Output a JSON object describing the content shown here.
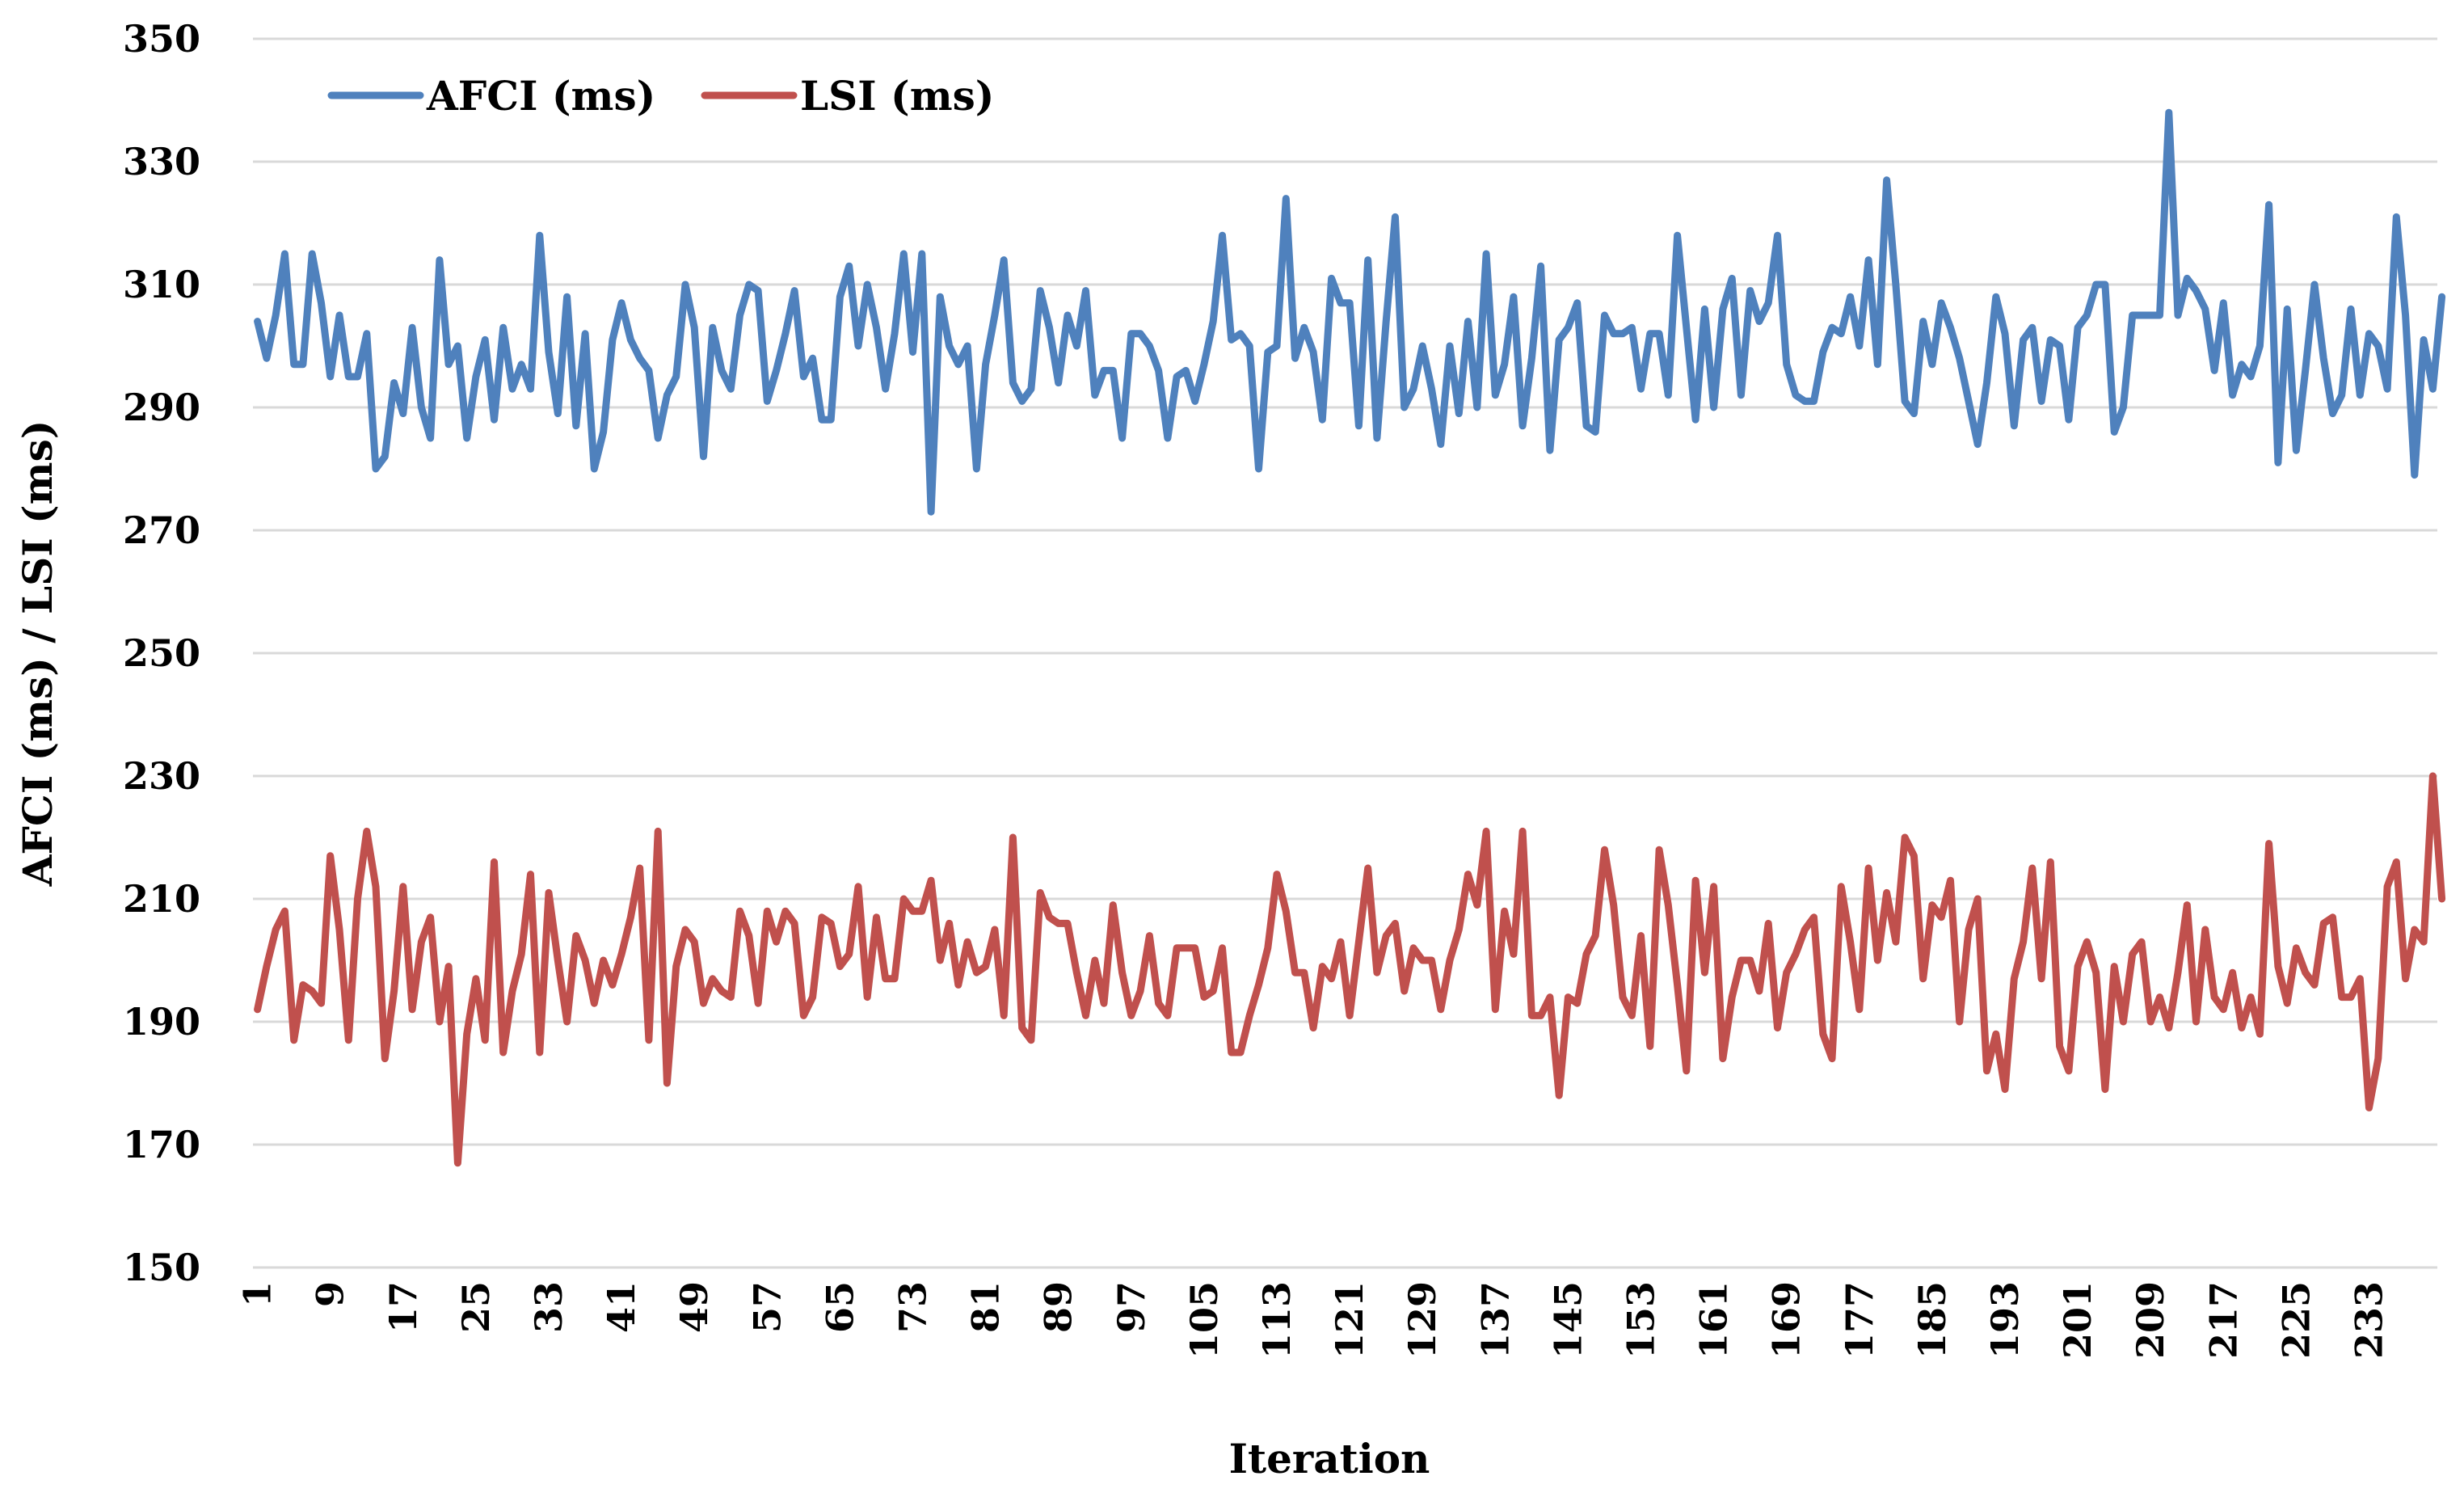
{
  "chart_data": {
    "type": "line",
    "title": "",
    "xlabel": "Iteration",
    "ylabel": "AFCI (ms) / LSI (ms)",
    "ylim": [
      150,
      350
    ],
    "yticks": [
      150,
      170,
      190,
      210,
      230,
      250,
      270,
      290,
      310,
      330,
      350
    ],
    "grid": true,
    "legend_position": "top-left",
    "x_start": 1,
    "x_count": 240,
    "x_tick_labels": [
      "1",
      "9",
      "17",
      "25",
      "33",
      "41",
      "49",
      "57",
      "65",
      "73",
      "81",
      "89",
      "97",
      "105",
      "113",
      "121",
      "129",
      "137",
      "145",
      "153",
      "161",
      "169",
      "177",
      "185",
      "193",
      "201",
      "209",
      "217",
      "225",
      "233"
    ],
    "series": [
      {
        "name": "AFCI (ms)",
        "color": "#4F81BD",
        "values": [
          304,
          298,
          305,
          315,
          297,
          297,
          315,
          307,
          295,
          305,
          295,
          295,
          302,
          280,
          282,
          294,
          289,
          303,
          290,
          285,
          314,
          297,
          300,
          285,
          295,
          301,
          288,
          303,
          293,
          297,
          293,
          318,
          299,
          289,
          308,
          287,
          302,
          280,
          286,
          301,
          307,
          301,
          298,
          296,
          285,
          292,
          295,
          310,
          303,
          282,
          303,
          296,
          293,
          305,
          310,
          309,
          291,
          296,
          302,
          309,
          295,
          298,
          288,
          288,
          308,
          313,
          300,
          310,
          303,
          293,
          302,
          315,
          299,
          315,
          273,
          308,
          300,
          297,
          300,
          280,
          297,
          305,
          314,
          294,
          291,
          293,
          309,
          303,
          294,
          305,
          300,
          309,
          292,
          296,
          296,
          285,
          302,
          302,
          300,
          296,
          285,
          295,
          296,
          291,
          297,
          304,
          318,
          301,
          302,
          300,
          280,
          299,
          300,
          324,
          298,
          303,
          299,
          288,
          311,
          307,
          307,
          287,
          314,
          285,
          304,
          321,
          290,
          293,
          300,
          293,
          284,
          300,
          289,
          304,
          290,
          315,
          292,
          297,
          308,
          287,
          298,
          313,
          283,
          301,
          303,
          307,
          287,
          286,
          305,
          302,
          302,
          303,
          293,
          302,
          302,
          292,
          318,
          303,
          288,
          306,
          290,
          306,
          311,
          292,
          309,
          304,
          307,
          318,
          297,
          292,
          291,
          291,
          299,
          303,
          302,
          308,
          300,
          314,
          297,
          327,
          310,
          291,
          289,
          304,
          297,
          307,
          303,
          298,
          291,
          284,
          294,
          308,
          302,
          287,
          301,
          303,
          291,
          301,
          300,
          288,
          303,
          305,
          310,
          310,
          286,
          290,
          305,
          305,
          305,
          305,
          338,
          305,
          311,
          309,
          306,
          296,
          307,
          292,
          297,
          295,
          300,
          323,
          281,
          306,
          283,
          296,
          310,
          298,
          289,
          292,
          306,
          292,
          302,
          300,
          293,
          321,
          305,
          279,
          301,
          293,
          308
        ]
      },
      {
        "name": "LSI (ms)",
        "color": "#C0504D",
        "values": [
          192,
          199,
          205,
          208,
          187,
          196,
          195,
          193,
          217,
          205,
          187,
          210,
          221,
          212,
          184,
          195,
          212,
          192,
          203,
          207,
          190,
          199,
          167,
          188,
          197,
          187,
          216,
          185,
          195,
          201,
          214,
          185,
          211,
          200,
          190,
          204,
          200,
          193,
          200,
          196,
          201,
          207,
          215,
          187,
          221,
          180,
          199,
          205,
          203,
          193,
          197,
          195,
          194,
          208,
          204,
          193,
          208,
          203,
          208,
          206,
          191,
          194,
          207,
          206,
          199,
          201,
          212,
          194,
          207,
          197,
          197,
          210,
          208,
          208,
          213,
          200,
          206,
          196,
          203,
          198,
          199,
          205,
          191,
          220,
          189,
          187,
          211,
          207,
          206,
          206,
          198,
          191,
          200,
          193,
          209,
          198,
          191,
          195,
          204,
          193,
          191,
          202,
          202,
          202,
          194,
          195,
          202,
          185,
          185,
          191,
          196,
          202,
          214,
          208,
          198,
          198,
          189,
          199,
          197,
          203,
          191,
          203,
          215,
          198,
          204,
          206,
          195,
          202,
          200,
          200,
          192,
          200,
          205,
          214,
          209,
          221,
          192,
          208,
          201,
          221,
          191,
          191,
          194,
          178,
          194,
          193,
          201,
          204,
          218,
          209,
          194,
          191,
          204,
          186,
          218,
          209,
          196,
          182,
          213,
          198,
          212,
          184,
          194,
          200,
          200,
          195,
          206,
          189,
          198,
          201,
          205,
          207,
          188,
          184,
          212,
          203,
          192,
          215,
          200,
          211,
          203,
          220,
          217,
          197,
          209,
          207,
          213,
          190,
          205,
          210,
          182,
          188,
          179,
          197,
          203,
          215,
          197,
          216,
          186,
          182,
          199,
          203,
          198,
          179,
          199,
          190,
          201,
          203,
          190,
          194,
          189,
          198,
          209,
          190,
          205,
          194,
          192,
          198,
          189,
          194,
          188,
          219,
          199,
          193,
          202,
          198,
          196,
          206,
          207,
          194,
          194,
          197,
          176,
          184,
          212,
          216,
          197,
          205,
          203,
          230,
          210
        ]
      }
    ]
  }
}
